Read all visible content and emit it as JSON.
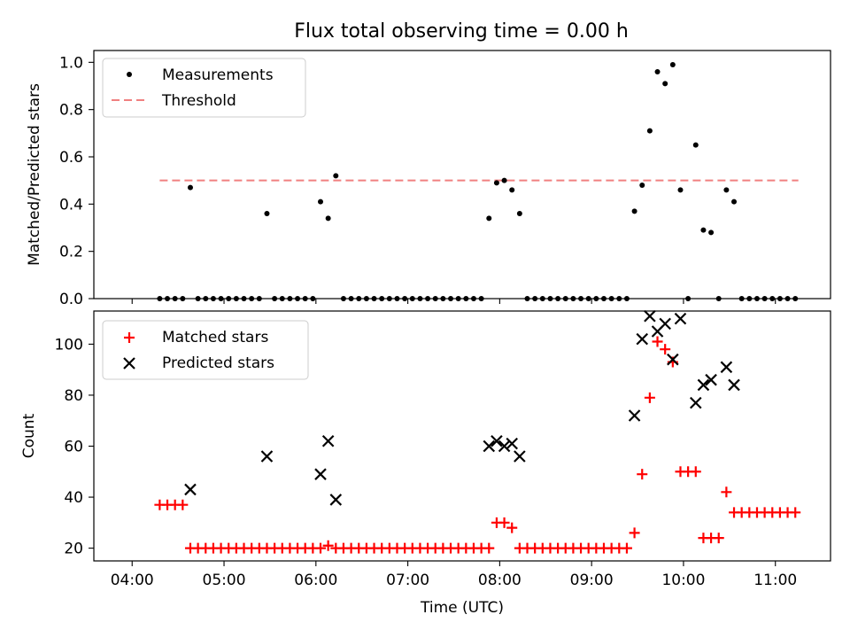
{
  "title": "Flux total observing time = 0.00 h",
  "colors": {
    "measurement": "#000000",
    "threshold": "#f08080",
    "matched": "#ff0000",
    "predicted": "#000000"
  },
  "chart_data": [
    {
      "type": "scatter",
      "ylabel": "Matched/Predicted stars",
      "ylim": [
        0,
        1.05
      ],
      "yticks": [
        "0.0",
        "0.2",
        "0.4",
        "0.6",
        "0.8",
        "1.0"
      ],
      "grid": false,
      "legend_placement": "top-left",
      "legend": {
        "measurements": "Measurements",
        "threshold": "Threshold"
      },
      "threshold": {
        "value": 0.5,
        "x_start": "04:18",
        "x_end": "11:15"
      },
      "series": [
        {
          "name": "Measurements",
          "points": [
            [
              "04:18",
              0
            ],
            [
              "04:23",
              0
            ],
            [
              "04:28",
              0
            ],
            [
              "04:33",
              0
            ],
            [
              "04:38",
              0.47
            ],
            [
              "04:43",
              0
            ],
            [
              "04:48",
              0
            ],
            [
              "04:53",
              0
            ],
            [
              "04:58",
              0
            ],
            [
              "05:03",
              0
            ],
            [
              "05:08",
              0
            ],
            [
              "05:13",
              0
            ],
            [
              "05:18",
              0
            ],
            [
              "05:23",
              0
            ],
            [
              "05:28",
              0.36
            ],
            [
              "05:33",
              0
            ],
            [
              "05:38",
              0
            ],
            [
              "05:43",
              0
            ],
            [
              "05:48",
              0
            ],
            [
              "05:53",
              0
            ],
            [
              "05:58",
              0
            ],
            [
              "06:03",
              0.41
            ],
            [
              "06:08",
              0.34
            ],
            [
              "06:13",
              0.52
            ],
            [
              "06:18",
              0
            ],
            [
              "06:23",
              0
            ],
            [
              "06:28",
              0
            ],
            [
              "06:33",
              0
            ],
            [
              "06:38",
              0
            ],
            [
              "06:43",
              0
            ],
            [
              "06:48",
              0
            ],
            [
              "06:53",
              0
            ],
            [
              "06:58",
              0
            ],
            [
              "07:03",
              0
            ],
            [
              "07:08",
              0
            ],
            [
              "07:13",
              0
            ],
            [
              "07:18",
              0
            ],
            [
              "07:23",
              0
            ],
            [
              "07:28",
              0
            ],
            [
              "07:33",
              0
            ],
            [
              "07:38",
              0
            ],
            [
              "07:43",
              0
            ],
            [
              "07:48",
              0
            ],
            [
              "07:53",
              0.34
            ],
            [
              "07:58",
              0.49
            ],
            [
              "08:03",
              0.5
            ],
            [
              "08:08",
              0.46
            ],
            [
              "08:13",
              0.36
            ],
            [
              "08:18",
              0
            ],
            [
              "08:23",
              0
            ],
            [
              "08:28",
              0
            ],
            [
              "08:33",
              0
            ],
            [
              "08:38",
              0
            ],
            [
              "08:43",
              0
            ],
            [
              "08:48",
              0
            ],
            [
              "08:53",
              0
            ],
            [
              "08:58",
              0
            ],
            [
              "09:03",
              0
            ],
            [
              "09:08",
              0
            ],
            [
              "09:13",
              0
            ],
            [
              "09:18",
              0
            ],
            [
              "09:23",
              0
            ],
            [
              "09:28",
              0.37
            ],
            [
              "09:33",
              0.48
            ],
            [
              "09:38",
              0.71
            ],
            [
              "09:43",
              0.96
            ],
            [
              "09:48",
              0.91
            ],
            [
              "09:53",
              0.99
            ],
            [
              "09:58",
              0.46
            ],
            [
              "10:03",
              0
            ],
            [
              "10:08",
              0.65
            ],
            [
              "10:13",
              0.29
            ],
            [
              "10:18",
              0.28
            ],
            [
              "10:23",
              0
            ],
            [
              "10:28",
              0.46
            ],
            [
              "10:33",
              0.41
            ],
            [
              "10:38",
              0
            ],
            [
              "10:43",
              0
            ],
            [
              "10:48",
              0
            ],
            [
              "10:53",
              0
            ],
            [
              "10:58",
              0
            ],
            [
              "11:03",
              0
            ],
            [
              "11:08",
              0
            ],
            [
              "11:13",
              0
            ]
          ]
        }
      ]
    },
    {
      "type": "scatter",
      "xlabel": "Time (UTC)",
      "ylabel": "Count",
      "xticks": [
        "04:00",
        "05:00",
        "06:00",
        "07:00",
        "08:00",
        "09:00",
        "10:00",
        "11:00"
      ],
      "yticks": [
        "20",
        "40",
        "60",
        "80",
        "100"
      ],
      "ylim": [
        15,
        113
      ],
      "grid": false,
      "legend_placement": "top-left",
      "series": [
        {
          "name": "Matched stars",
          "marker": "+",
          "points": [
            [
              "04:18",
              37
            ],
            [
              "04:23",
              37
            ],
            [
              "04:28",
              37
            ],
            [
              "04:33",
              37
            ],
            [
              "04:38",
              20
            ],
            [
              "04:43",
              20
            ],
            [
              "04:48",
              20
            ],
            [
              "04:53",
              20
            ],
            [
              "04:58",
              20
            ],
            [
              "05:03",
              20
            ],
            [
              "05:08",
              20
            ],
            [
              "05:13",
              20
            ],
            [
              "05:18",
              20
            ],
            [
              "05:23",
              20
            ],
            [
              "05:28",
              20
            ],
            [
              "05:33",
              20
            ],
            [
              "05:38",
              20
            ],
            [
              "05:43",
              20
            ],
            [
              "05:48",
              20
            ],
            [
              "05:53",
              20
            ],
            [
              "05:58",
              20
            ],
            [
              "06:03",
              20
            ],
            [
              "06:08",
              21
            ],
            [
              "06:13",
              20
            ],
            [
              "06:18",
              20
            ],
            [
              "06:23",
              20
            ],
            [
              "06:28",
              20
            ],
            [
              "06:33",
              20
            ],
            [
              "06:38",
              20
            ],
            [
              "06:43",
              20
            ],
            [
              "06:48",
              20
            ],
            [
              "06:53",
              20
            ],
            [
              "06:58",
              20
            ],
            [
              "07:03",
              20
            ],
            [
              "07:08",
              20
            ],
            [
              "07:13",
              20
            ],
            [
              "07:18",
              20
            ],
            [
              "07:23",
              20
            ],
            [
              "07:28",
              20
            ],
            [
              "07:33",
              20
            ],
            [
              "07:38",
              20
            ],
            [
              "07:43",
              20
            ],
            [
              "07:48",
              20
            ],
            [
              "07:53",
              20
            ],
            [
              "07:58",
              30
            ],
            [
              "08:03",
              30
            ],
            [
              "08:08",
              28
            ],
            [
              "08:13",
              20
            ],
            [
              "08:18",
              20
            ],
            [
              "08:23",
              20
            ],
            [
              "08:28",
              20
            ],
            [
              "08:33",
              20
            ],
            [
              "08:38",
              20
            ],
            [
              "08:43",
              20
            ],
            [
              "08:48",
              20
            ],
            [
              "08:53",
              20
            ],
            [
              "08:58",
              20
            ],
            [
              "09:03",
              20
            ],
            [
              "09:08",
              20
            ],
            [
              "09:13",
              20
            ],
            [
              "09:18",
              20
            ],
            [
              "09:23",
              20
            ],
            [
              "09:28",
              26
            ],
            [
              "09:33",
              49
            ],
            [
              "09:38",
              79
            ],
            [
              "09:43",
              101
            ],
            [
              "09:48",
              98
            ],
            [
              "09:53",
              93
            ],
            [
              "09:58",
              50
            ],
            [
              "10:03",
              50
            ],
            [
              "10:08",
              50
            ],
            [
              "10:13",
              24
            ],
            [
              "10:18",
              24
            ],
            [
              "10:23",
              24
            ],
            [
              "10:28",
              42
            ],
            [
              "10:33",
              34
            ],
            [
              "10:38",
              34
            ],
            [
              "10:43",
              34
            ],
            [
              "10:48",
              34
            ],
            [
              "10:53",
              34
            ],
            [
              "10:58",
              34
            ],
            [
              "11:03",
              34
            ],
            [
              "11:08",
              34
            ],
            [
              "11:13",
              34
            ]
          ]
        },
        {
          "name": "Predicted stars",
          "marker": "x",
          "points": [
            [
              "04:38",
              43
            ],
            [
              "05:28",
              56
            ],
            [
              "06:03",
              49
            ],
            [
              "06:08",
              62
            ],
            [
              "06:13",
              39
            ],
            [
              "07:53",
              60
            ],
            [
              "07:58",
              62
            ],
            [
              "08:03",
              60
            ],
            [
              "08:08",
              61
            ],
            [
              "08:13",
              56
            ],
            [
              "09:28",
              72
            ],
            [
              "09:33",
              102
            ],
            [
              "09:38",
              111
            ],
            [
              "09:43",
              105
            ],
            [
              "09:48",
              108
            ],
            [
              "09:53",
              94
            ],
            [
              "09:58",
              110
            ],
            [
              "10:08",
              77
            ],
            [
              "10:13",
              84
            ],
            [
              "10:18",
              86
            ],
            [
              "10:28",
              91
            ],
            [
              "10:33",
              84
            ]
          ]
        }
      ]
    }
  ]
}
